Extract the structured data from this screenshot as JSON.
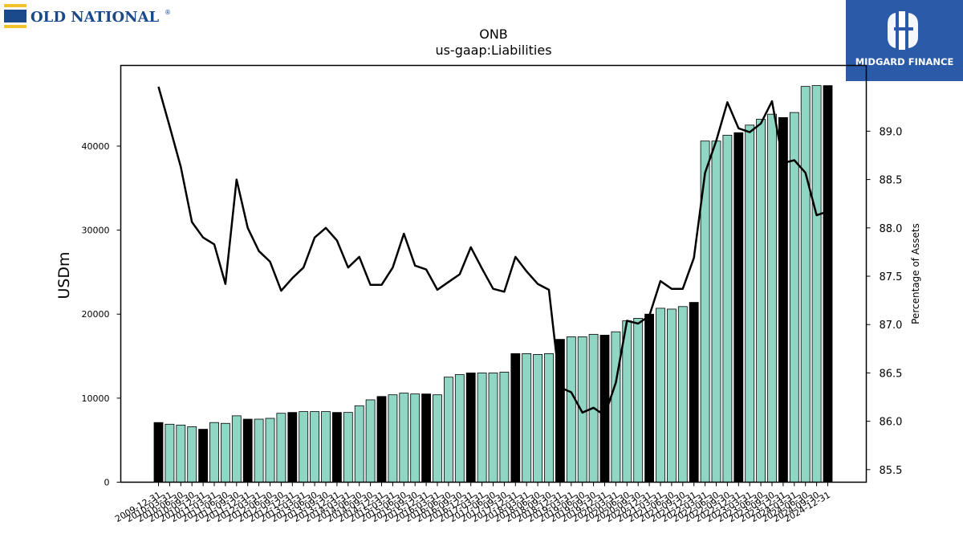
{
  "logos": {
    "left_text": "OLD NATIONAL",
    "left_mark": "®",
    "right_text": "MIDGARD FINANCE"
  },
  "colors": {
    "annual_bar": "#000000",
    "quarter_bar": "#8fd6c4",
    "line": "#000000",
    "brand_blue": "#2b5aa8",
    "old_national_blue": "#1a4a8c",
    "old_national_gold": "#f2c230"
  },
  "chart_data": {
    "type": "bar",
    "title": "ONB",
    "subtitle": "us-gaap:Liabilities",
    "ylabel": "USDm",
    "y2label": "Percentage of Assets",
    "ylim": [
      0,
      49600
    ],
    "y2lim": [
      85.37,
      89.68
    ],
    "yticks": [
      0,
      10000,
      20000,
      30000,
      40000
    ],
    "y2ticks": [
      "85.5",
      "86.0",
      "86.5",
      "87.0",
      "87.5",
      "88.0",
      "88.5",
      "89.0"
    ],
    "categories": [
      "2009-12-31",
      "2010-03-31",
      "2010-06-30",
      "2010-09-30",
      "2010-12-31",
      "2011-03-31",
      "2011-06-30",
      "2011-09-30",
      "2011-12-31",
      "2012-03-31",
      "2012-06-30",
      "2012-09-30",
      "2012-12-31",
      "2013-03-31",
      "2013-06-30",
      "2013-09-30",
      "2013-12-31",
      "2014-03-31",
      "2014-06-30",
      "2014-09-30",
      "2014-12-31",
      "2015-03-31",
      "2015-06-30",
      "2015-09-30",
      "2015-12-31",
      "2016-03-31",
      "2016-06-30",
      "2016-09-30",
      "2016-12-31",
      "2017-03-31",
      "2017-06-30",
      "2017-09-30",
      "2017-12-31",
      "2018-03-31",
      "2018-06-30",
      "2018-09-30",
      "2018-12-31",
      "2019-03-31",
      "2019-06-30",
      "2019-09-30",
      "2019-12-31",
      "2020-03-31",
      "2020-06-30",
      "2020-09-30",
      "2020-12-31",
      "2021-03-31",
      "2021-06-30",
      "2021-09-30",
      "2021-12-31",
      "2022-03-31",
      "2022-06-30",
      "2022-09-30",
      "2022-12-31",
      "2023-03-31",
      "2023-06-30",
      "2023-09-30",
      "2023-12-31",
      "2024-03-31",
      "2024-06-30",
      "2024-09-30",
      "2024-12-31"
    ],
    "xtick_labels": [
      "2009-12-31",
      "2010-03-31",
      "2010-06-30",
      "2010-09-30",
      "2010-12-31",
      "2011-03-31",
      "2011-06-30",
      "2011-09-30",
      "2011-12-31",
      "2012-03-31",
      "2012-06-30",
      "2012-09-30",
      "2012-12-31",
      "2013-03-31",
      "2013-06-30",
      "2013-09-30",
      "2013-12-31",
      "2014-03-31",
      "2014-06-30",
      "2014-09-30",
      "2014-12-31",
      "2015-03-31",
      "2015-06-30",
      "2015-09-30",
      "2015-12-31",
      "2016-03-31",
      "2016-06-30",
      "2016-09-30",
      "2016-12-31",
      "2017-03-31",
      "2017-06-30",
      "2017-09-30",
      "2017-12-31",
      "2018-03-31",
      "2018-06-30",
      "2018-09-30",
      "2018-12-31",
      "2019-03-31",
      "2019-06-30",
      "2019-09-30",
      "2019-12-31",
      "2020-03-31",
      "2020-06-30",
      "2020-09-30",
      "2020-12-31",
      "2021-03-31",
      "2021-06-30",
      "2021-09-30",
      "2021-12-31",
      "2022-03-31",
      "2022-06-30",
      "2022-09-30",
      "2022-12-31",
      "2023-03-31",
      "2023-06-30",
      "2023-09-30",
      "2023-12-31",
      "2024-03-31",
      "2024-06-30",
      "2024-09-30",
      "2024-12-31"
    ],
    "series": [
      {
        "values": [
          7100,
          6900,
          6800,
          6600,
          6300,
          7100,
          7000,
          7900,
          7500,
          7500,
          7600,
          8200,
          8300,
          8400,
          8400,
          8400,
          8300,
          8300,
          9100,
          9800,
          10200,
          10400,
          10600,
          10500,
          10500,
          10400,
          12500,
          12800,
          13000,
          13000,
          13000,
          13100,
          15300,
          15300,
          15200,
          15300,
          17000,
          17300,
          17300,
          17600,
          17500,
          17900,
          19200,
          19500,
          20000,
          20700,
          20600,
          20900,
          21400,
          40600,
          40600,
          41300,
          41600,
          42500,
          43200,
          43800,
          43400,
          44000,
          47100,
          47200,
          47200
        ]
      },
      {
        "values": [
          89.46,
          89.05,
          88.63,
          88.06,
          87.9,
          87.83,
          87.42,
          88.5,
          88.0,
          87.76,
          87.65,
          87.35,
          87.48,
          87.59,
          87.9,
          88.0,
          87.87,
          87.59,
          87.7,
          87.41,
          87.41,
          87.59,
          87.94,
          87.61,
          87.57,
          87.36,
          87.44,
          87.52,
          87.8,
          87.58,
          87.37,
          87.34,
          87.7,
          87.55,
          87.42,
          87.36,
          86.35,
          86.3,
          86.09,
          86.14,
          86.06,
          86.4,
          87.04,
          87.01,
          87.09,
          87.45,
          87.37,
          87.37,
          87.69,
          88.57,
          88.9,
          89.3,
          89.03,
          88.99,
          89.08,
          89.31,
          88.67,
          88.7,
          88.57,
          88.13,
          88.17
        ]
      }
    ]
  }
}
